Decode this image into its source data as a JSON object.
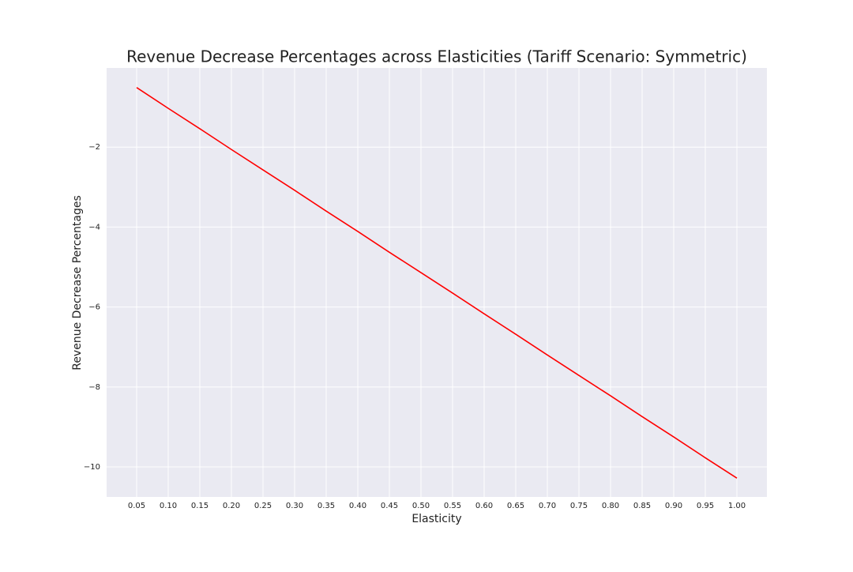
{
  "chart_data": {
    "type": "line",
    "title": "Revenue Decrease Percentages across Elasticities (Tariff Scenario: Symmetric)",
    "xlabel": "Elasticity",
    "ylabel": "Revenue Decrease Percentages",
    "x": [
      0.05,
      0.1,
      0.15,
      0.2,
      0.25,
      0.3,
      0.35,
      0.4,
      0.45,
      0.5,
      0.55,
      0.6,
      0.65,
      0.7,
      0.75,
      0.8,
      0.85,
      0.9,
      0.95,
      1.0
    ],
    "series": [
      {
        "color": "#ff0000",
        "values": [
          -0.51,
          -1.03,
          -1.54,
          -2.06,
          -2.57,
          -3.08,
          -3.6,
          -4.11,
          -4.63,
          -5.14,
          -5.65,
          -6.17,
          -6.68,
          -7.2,
          -7.71,
          -8.22,
          -8.74,
          -9.25,
          -9.77,
          -10.28
        ]
      }
    ],
    "xlim": [
      0.0025,
      1.0475
    ],
    "ylim": [
      -10.75,
      -0.02
    ],
    "xticks": [
      0.05,
      {
        "value": 0.1,
        "label": "0.10"
      },
      0.15,
      {
        "value": 0.2,
        "label": "0.20"
      },
      0.25,
      {
        "value": 0.3,
        "label": "0.30"
      },
      0.35,
      {
        "value": 0.4,
        "label": "0.40"
      },
      0.45,
      {
        "value": 0.5,
        "label": "0.50"
      },
      0.55,
      {
        "value": 0.6,
        "label": "0.60"
      },
      0.65,
      {
        "value": 0.7,
        "label": "0.70"
      },
      0.75,
      {
        "value": 0.8,
        "label": "0.80"
      },
      0.85,
      {
        "value": 0.9,
        "label": "0.90"
      },
      0.95,
      {
        "value": 1.0,
        "label": "1.00"
      }
    ],
    "yticks": [
      {
        "value": -2,
        "label": "−2"
      },
      {
        "value": -4,
        "label": "−4"
      },
      {
        "value": -6,
        "label": "−6"
      },
      {
        "value": -8,
        "label": "−8"
      },
      {
        "value": -10,
        "label": "−10"
      }
    ],
    "grid": true,
    "background": "#eaeaf2"
  }
}
